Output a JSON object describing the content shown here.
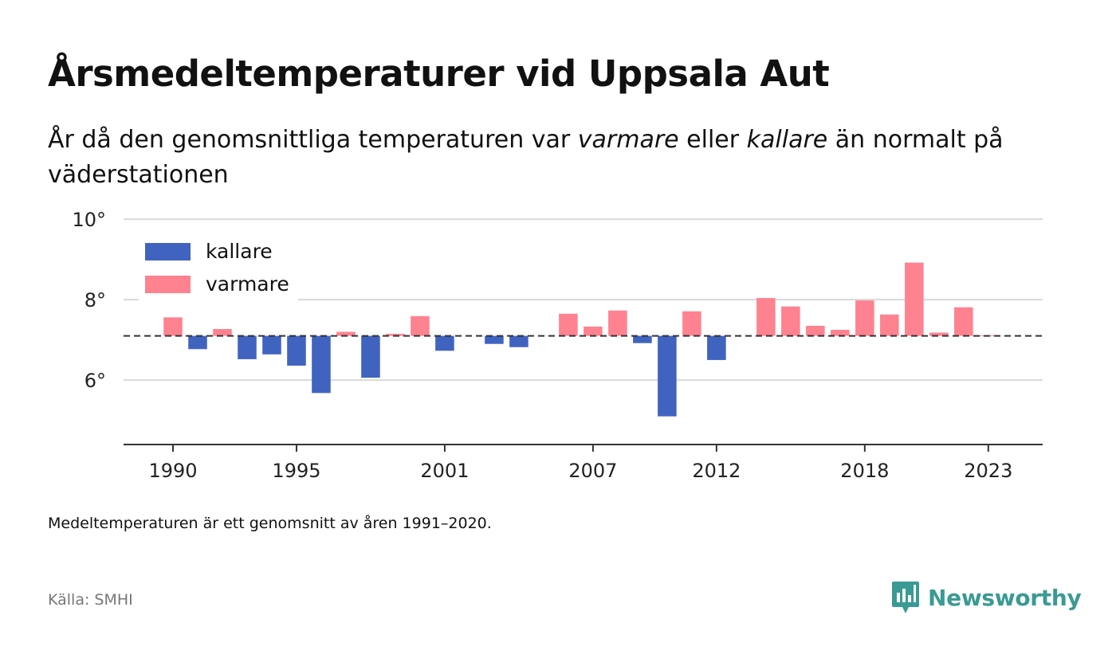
{
  "title": "Årsmedeltemperaturer vid Uppsala Aut",
  "subtitle": {
    "part1": "År då den genomsnittliga temperaturen var ",
    "warm_word": "varmare",
    "part2": " eller ",
    "cold_word": "kallare",
    "part3": " än normalt på väderstationen"
  },
  "note": "Medeltemperaturen är ett genomsnitt av åren 1991–2020.",
  "source": "Källa: SMHI",
  "brand": "Newsworthy",
  "icons": {
    "brand_logo": "bar-chart-speech-bubble-icon"
  },
  "chart_data": {
    "type": "bar",
    "baseline": 7.1,
    "ylim": [
      4.4,
      10.2
    ],
    "yticks": [
      6,
      8,
      10
    ],
    "ytick_labels": [
      "6°",
      "8°",
      "10°"
    ],
    "xtick_years": [
      1990,
      1995,
      2001,
      2007,
      2012,
      2018,
      2023
    ],
    "xtick_labels": [
      "1990",
      "1995",
      "2001",
      "2007",
      "2012",
      "2018",
      "2023"
    ],
    "xlim": [
      1988,
      2025.2
    ],
    "legend": {
      "position": "top-left",
      "items": [
        {
          "label": "kallare",
          "color": "#4163c0"
        },
        {
          "label": "varmare",
          "color": "#ff8290"
        }
      ]
    },
    "colors": {
      "cold": "#4163c0",
      "warm": "#ff8290",
      "grid": "#d9d9d9",
      "axis": "#333333",
      "baseline": "#333333"
    },
    "x": [
      1990,
      1991,
      1992,
      1993,
      1994,
      1995,
      1996,
      1997,
      1998,
      1999,
      2000,
      2001,
      2003,
      2004,
      2006,
      2007,
      2008,
      2009,
      2010,
      2011,
      2012,
      2014,
      2015,
      2016,
      2017,
      2018,
      2019,
      2020,
      2021,
      2022,
      2023
    ],
    "values": [
      7.56,
      6.77,
      7.27,
      6.52,
      6.64,
      6.36,
      5.68,
      7.2,
      6.06,
      7.15,
      7.59,
      6.73,
      6.9,
      6.82,
      7.65,
      7.33,
      7.73,
      6.92,
      5.1,
      7.71,
      6.5,
      8.04,
      7.83,
      7.35,
      7.25,
      7.98,
      7.63,
      8.92,
      7.18,
      7.81,
      7.11
    ]
  }
}
